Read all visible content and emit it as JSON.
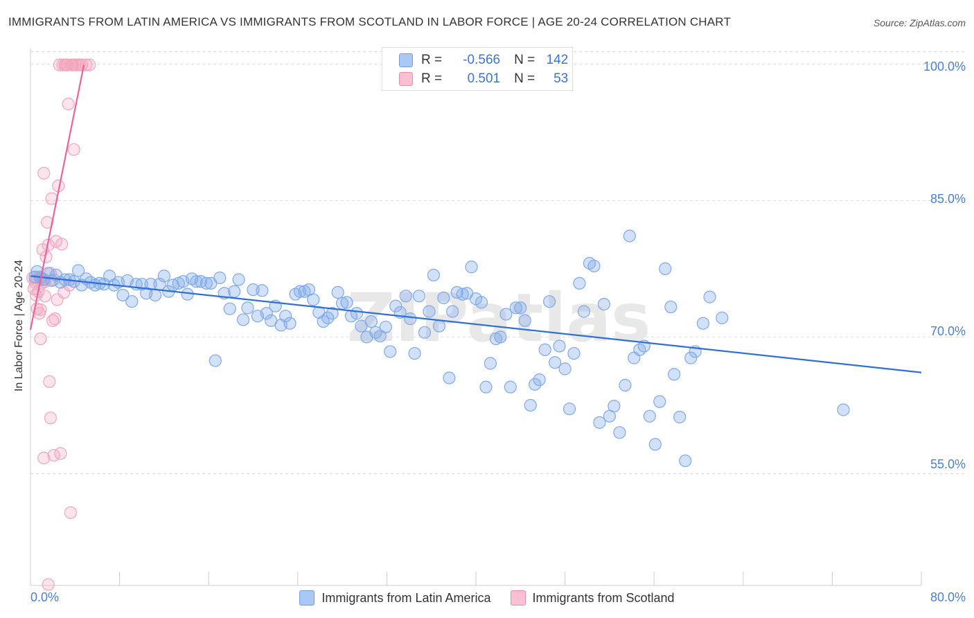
{
  "header": {
    "title": "IMMIGRANTS FROM LATIN AMERICA VS IMMIGRANTS FROM SCOTLAND IN LABOR FORCE | AGE 20-24 CORRELATION CHART",
    "source": "Source: ZipAtlas.com"
  },
  "watermark": "ZIPatlas",
  "legend": {
    "r_label": "R =",
    "n_label": "N =",
    "rows": [
      {
        "r": "-0.566",
        "n": "142",
        "color": "#a9c8f5",
        "border": "#6f9fe0"
      },
      {
        "r": "0.501",
        "n": "53",
        "color": "#f8c0d2",
        "border": "#ec8aaa"
      }
    ]
  },
  "bottom_legend": [
    {
      "label": "Immigrants from Latin America",
      "color": "#a9c8f5",
      "border": "#6f9fe0"
    },
    {
      "label": "Immigrants from Scotland",
      "color": "#f8c0d2",
      "border": "#ec8aaa"
    }
  ],
  "chart_data": {
    "type": "scatter",
    "title": "IMMIGRANTS FROM LATIN AMERICA VS IMMIGRANTS FROM SCOTLAND IN LABOR FORCE | AGE 20-24 CORRELATION CHART",
    "xlabel": "",
    "ylabel": "In Labor Force | Age 20-24",
    "xlim": [
      0,
      80
    ],
    "ylim": [
      42.7,
      101.7
    ],
    "x_tick_labels": [
      "0.0%",
      "80.0%"
    ],
    "y_ticks": [
      55,
      70,
      85,
      100
    ],
    "y_tick_labels": [
      "55.0%",
      "70.0%",
      "85.0%",
      "100.0%"
    ],
    "grid": true,
    "legend_position": "top-center",
    "series": [
      {
        "name": "Immigrants from Latin America",
        "color": "#7ea9ea",
        "line_color": "#2f6fd6",
        "trend": {
          "x": [
            0,
            80
          ],
          "y": [
            76.7,
            66.1
          ]
        },
        "points": [
          [
            0.4,
            76.6
          ],
          [
            0.6,
            77.2
          ],
          [
            0.9,
            76.5
          ],
          [
            1.2,
            76.3
          ],
          [
            1.6,
            77.0
          ],
          [
            1.9,
            76.2
          ],
          [
            2.3,
            76.8
          ],
          [
            2.7,
            76.0
          ],
          [
            3.1,
            76.3
          ],
          [
            3.5,
            76.3
          ],
          [
            3.9,
            76.1
          ],
          [
            4.3,
            77.3
          ],
          [
            4.6,
            75.7
          ],
          [
            5.0,
            76.4
          ],
          [
            5.4,
            76.0
          ],
          [
            5.8,
            75.7
          ],
          [
            6.2,
            75.9
          ],
          [
            6.6,
            75.8
          ],
          [
            7.1,
            76.7
          ],
          [
            7.5,
            75.7
          ],
          [
            7.9,
            76.0
          ],
          [
            8.3,
            74.6
          ],
          [
            8.7,
            76.2
          ],
          [
            9.1,
            73.9
          ],
          [
            9.5,
            75.8
          ],
          [
            10.0,
            75.8
          ],
          [
            10.4,
            74.8
          ],
          [
            10.8,
            75.8
          ],
          [
            11.2,
            74.6
          ],
          [
            11.6,
            75.8
          ],
          [
            12.0,
            76.7
          ],
          [
            12.4,
            75.0
          ],
          [
            12.8,
            75.7
          ],
          [
            13.3,
            75.9
          ],
          [
            13.7,
            76.1
          ],
          [
            14.1,
            74.7
          ],
          [
            14.5,
            76.4
          ],
          [
            14.9,
            76.1
          ],
          [
            15.3,
            76.1
          ],
          [
            15.8,
            75.9
          ],
          [
            16.2,
            75.9
          ],
          [
            16.6,
            67.4
          ],
          [
            17.0,
            76.5
          ],
          [
            17.4,
            74.8
          ],
          [
            17.9,
            73.1
          ],
          [
            18.3,
            75.0
          ],
          [
            18.7,
            76.3
          ],
          [
            19.1,
            71.9
          ],
          [
            19.5,
            73.2
          ],
          [
            20.0,
            75.2
          ],
          [
            20.4,
            72.3
          ],
          [
            20.8,
            75.1
          ],
          [
            21.2,
            72.6
          ],
          [
            21.6,
            71.8
          ],
          [
            22.0,
            73.4
          ],
          [
            22.5,
            71.3
          ],
          [
            22.9,
            72.3
          ],
          [
            23.3,
            71.5
          ],
          [
            23.8,
            74.7
          ],
          [
            24.2,
            75.0
          ],
          [
            24.6,
            75.0
          ],
          [
            25.0,
            75.2
          ],
          [
            25.4,
            74.1
          ],
          [
            25.9,
            72.7
          ],
          [
            26.3,
            71.7
          ],
          [
            26.7,
            72.1
          ],
          [
            27.1,
            72.6
          ],
          [
            27.6,
            74.9
          ],
          [
            28.0,
            73.7
          ],
          [
            28.4,
            73.8
          ],
          [
            28.8,
            72.3
          ],
          [
            29.3,
            72.6
          ],
          [
            29.7,
            71.2
          ],
          [
            30.2,
            70.0
          ],
          [
            30.6,
            71.7
          ],
          [
            31.0,
            70.5
          ],
          [
            31.4,
            70.1
          ],
          [
            31.9,
            71.1
          ],
          [
            32.3,
            68.4
          ],
          [
            32.8,
            73.4
          ],
          [
            33.2,
            72.7
          ],
          [
            33.7,
            74.5
          ],
          [
            34.1,
            72.0
          ],
          [
            34.5,
            68.2
          ],
          [
            34.9,
            74.5
          ],
          [
            35.4,
            70.5
          ],
          [
            35.8,
            72.8
          ],
          [
            36.2,
            76.8
          ],
          [
            36.7,
            71.2
          ],
          [
            37.1,
            74.3
          ],
          [
            37.6,
            65.5
          ],
          [
            37.9,
            72.8
          ],
          [
            38.3,
            74.9
          ],
          [
            38.8,
            74.7
          ],
          [
            39.2,
            74.8
          ],
          [
            39.6,
            77.7
          ],
          [
            40.0,
            74.2
          ],
          [
            40.5,
            73.8
          ],
          [
            40.9,
            64.5
          ],
          [
            41.3,
            67.1
          ],
          [
            41.8,
            69.8
          ],
          [
            42.2,
            70.0
          ],
          [
            42.7,
            72.5
          ],
          [
            43.1,
            64.5
          ],
          [
            43.6,
            73.2
          ],
          [
            44.0,
            73.2
          ],
          [
            44.4,
            71.8
          ],
          [
            44.9,
            62.5
          ],
          [
            45.3,
            64.8
          ],
          [
            45.7,
            65.3
          ],
          [
            46.2,
            68.6
          ],
          [
            46.6,
            73.9
          ],
          [
            47.1,
            67.2
          ],
          [
            47.5,
            69.0
          ],
          [
            48.0,
            66.5
          ],
          [
            48.4,
            62.1
          ],
          [
            48.8,
            68.2
          ],
          [
            49.3,
            75.9
          ],
          [
            49.7,
            72.8
          ],
          [
            50.2,
            78.1
          ],
          [
            50.6,
            77.8
          ],
          [
            51.1,
            60.6
          ],
          [
            51.5,
            73.6
          ],
          [
            52.0,
            61.3
          ],
          [
            52.4,
            62.4
          ],
          [
            52.9,
            59.5
          ],
          [
            53.4,
            64.7
          ],
          [
            53.8,
            81.1
          ],
          [
            54.2,
            67.7
          ],
          [
            54.7,
            68.6
          ],
          [
            55.1,
            69.0
          ],
          [
            55.6,
            61.3
          ],
          [
            56.1,
            58.2
          ],
          [
            56.5,
            62.9
          ],
          [
            57.0,
            77.5
          ],
          [
            57.5,
            73.3
          ],
          [
            57.8,
            65.9
          ],
          [
            58.3,
            61.2
          ],
          [
            58.8,
            56.4
          ],
          [
            59.3,
            67.7
          ],
          [
            59.7,
            68.4
          ],
          [
            60.4,
            71.5
          ],
          [
            61.0,
            74.4
          ],
          [
            62.1,
            72.1
          ],
          [
            73.0,
            62.0
          ]
        ]
      },
      {
        "name": "Immigrants from Scotland",
        "color": "#f2a4bd",
        "line_color": "#e8649a",
        "trend": {
          "x": [
            0,
            4.8
          ],
          "y": [
            70.8,
            99.9
          ]
        },
        "points": [
          [
            0.2,
            76.5
          ],
          [
            0.3,
            75.3
          ],
          [
            0.4,
            76.0
          ],
          [
            0.5,
            74.6
          ],
          [
            0.5,
            76.2
          ],
          [
            0.6,
            73.1
          ],
          [
            0.7,
            75.0
          ],
          [
            0.8,
            72.6
          ],
          [
            0.9,
            69.8
          ],
          [
            1.0,
            75.9
          ],
          [
            1.1,
            76.4
          ],
          [
            1.2,
            88.0
          ],
          [
            1.3,
            74.5
          ],
          [
            1.4,
            78.8
          ],
          [
            1.5,
            82.6
          ],
          [
            1.6,
            80.1
          ],
          [
            1.7,
            65.1
          ],
          [
            1.8,
            61.1
          ],
          [
            1.9,
            85.2
          ],
          [
            2.0,
            71.8
          ],
          [
            2.1,
            57.0
          ],
          [
            2.2,
            72.0
          ],
          [
            2.3,
            80.5
          ],
          [
            2.4,
            74.1
          ],
          [
            2.5,
            86.6
          ],
          [
            2.6,
            99.9
          ],
          [
            2.7,
            57.2
          ],
          [
            2.8,
            80.2
          ],
          [
            3.0,
            74.9
          ],
          [
            3.1,
            99.9
          ],
          [
            3.2,
            99.9
          ],
          [
            3.3,
            99.9
          ],
          [
            3.4,
            95.6
          ],
          [
            3.5,
            75.7
          ],
          [
            3.6,
            50.7
          ],
          [
            3.7,
            99.9
          ],
          [
            3.9,
            90.6
          ],
          [
            4.0,
            99.9
          ],
          [
            4.2,
            99.9
          ],
          [
            1.2,
            56.7
          ],
          [
            1.6,
            42.8
          ],
          [
            1.8,
            77.0
          ],
          [
            4.4,
            99.9
          ],
          [
            4.6,
            99.9
          ],
          [
            5.0,
            99.9
          ],
          [
            5.3,
            99.9
          ],
          [
            0.8,
            76.6
          ],
          [
            1.1,
            79.6
          ],
          [
            0.9,
            73.0
          ],
          [
            1.3,
            76.1
          ],
          [
            2.1,
            76.3
          ],
          [
            2.9,
            99.9
          ],
          [
            3.8,
            99.9
          ]
        ]
      }
    ]
  }
}
